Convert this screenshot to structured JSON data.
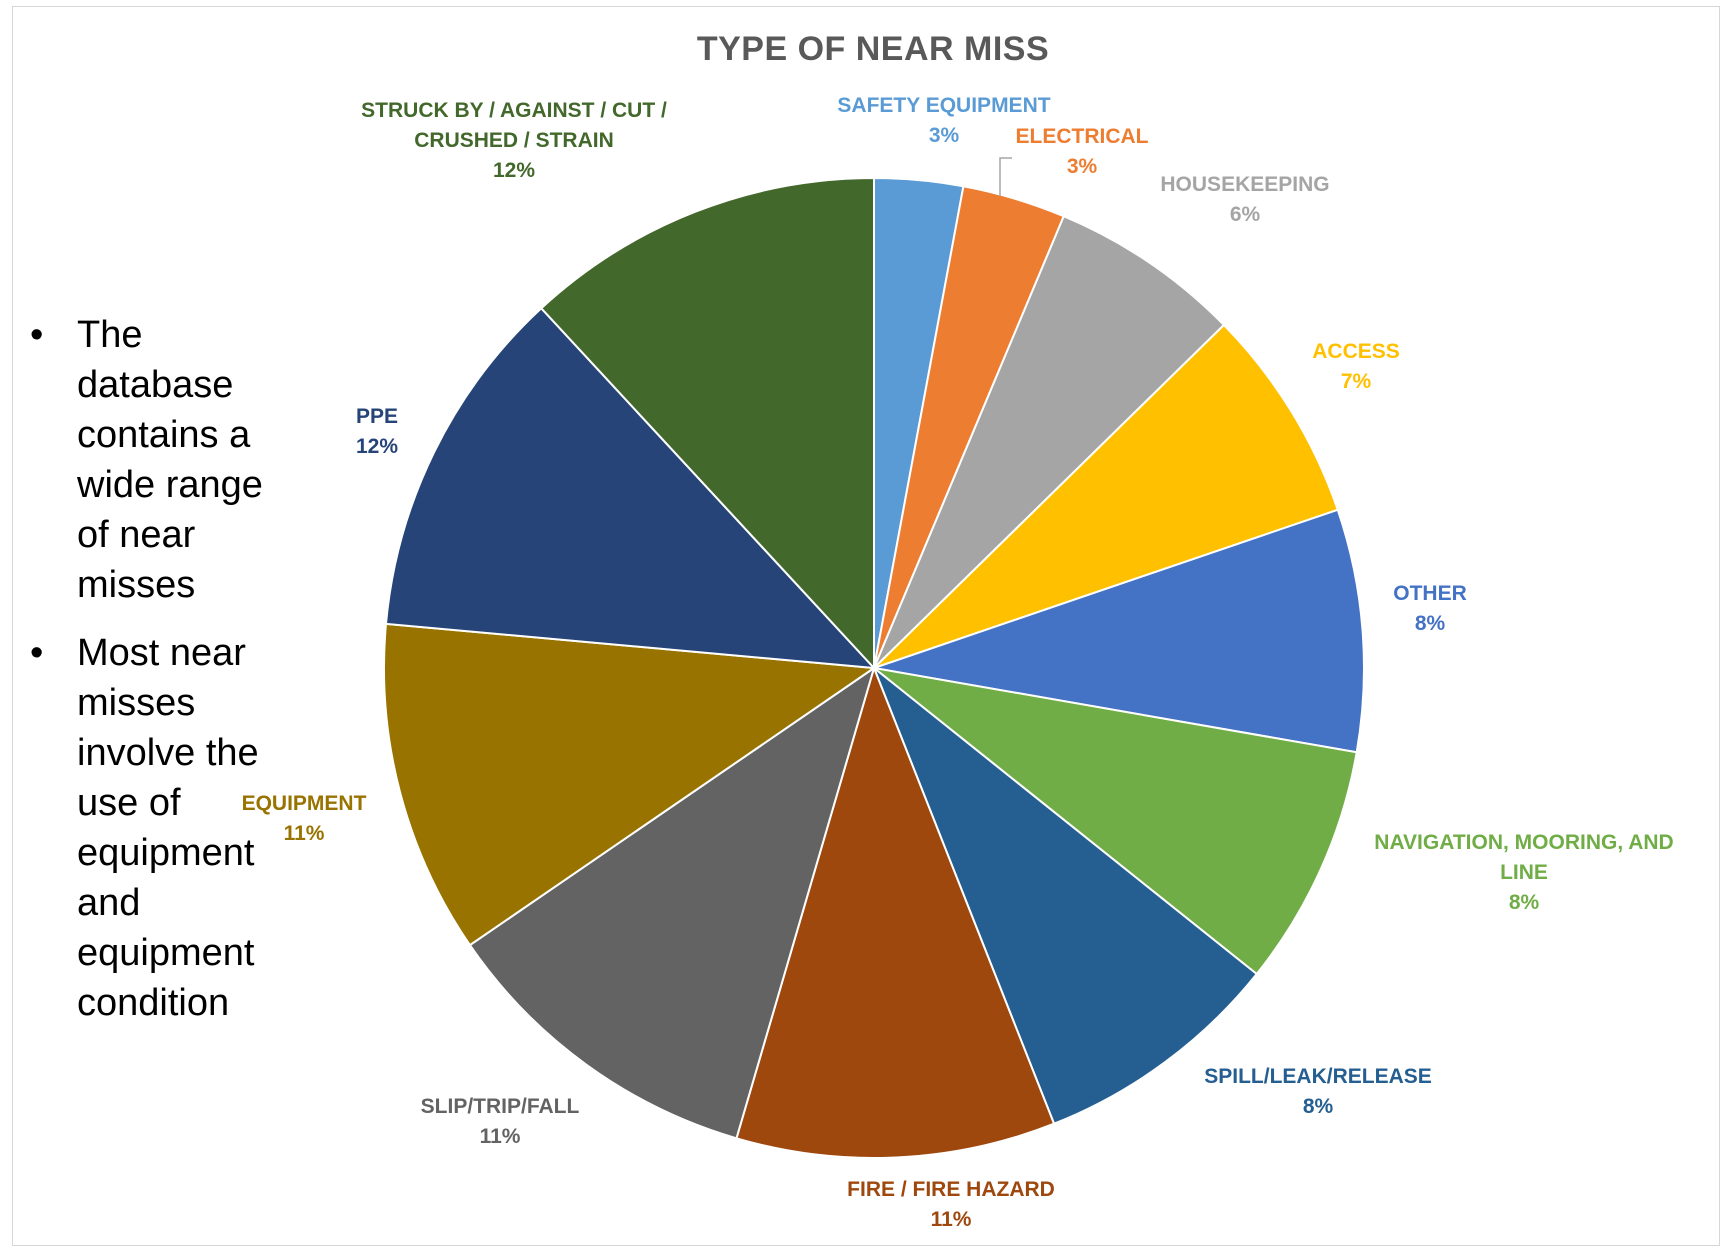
{
  "chart_data": {
    "type": "pie",
    "title": "TYPE OF NEAR MISS",
    "slices": [
      {
        "label": [
          "SAFETY EQUIPMENT"
        ],
        "pct_label": "3%",
        "value": 3,
        "color": "#5b9bd5"
      },
      {
        "label": [
          "ELECTRICAL"
        ],
        "pct_label": "3%",
        "value": 3.5,
        "color": "#ed7d31"
      },
      {
        "label": [
          "HOUSEKEEPING"
        ],
        "pct_label": "6%",
        "value": 6.5,
        "color": "#a5a5a5"
      },
      {
        "label": [
          "ACCESS"
        ],
        "pct_label": "7%",
        "value": 7.3,
        "color": "#ffc000"
      },
      {
        "label": [
          "OTHER"
        ],
        "pct_label": "8%",
        "value": 8.2,
        "color": "#4472c4"
      },
      {
        "label": [
          "NAVIGATION, MOORING, AND",
          "LINE"
        ],
        "pct_label": "8%",
        "value": 8.2,
        "color": "#70ad47"
      },
      {
        "label": [
          "SPILL/LEAK/RELEASE"
        ],
        "pct_label": "8%",
        "value": 8.5,
        "color": "#255e91"
      },
      {
        "label": [
          "FIRE / FIRE HAZARD"
        ],
        "pct_label": "11%",
        "value": 10.8,
        "color": "#9e480e"
      },
      {
        "label": [
          "SLIP/TRIP/FALL"
        ],
        "pct_label": "11%",
        "value": 11.2,
        "color": "#636363"
      },
      {
        "label": [
          "EQUIPMENT"
        ],
        "pct_label": "11%",
        "value": 11.3,
        "color": "#997300"
      },
      {
        "label": [
          "PPE"
        ],
        "pct_label": "12%",
        "value": 12.0,
        "color": "#264478"
      },
      {
        "label": [
          "STRUCK BY / AGAINST / CUT /",
          "CRUSHED / STRAIN"
        ],
        "pct_label": "12%",
        "value": 12.2,
        "color": "#43682b"
      }
    ]
  },
  "bullets": [
    {
      "lines": [
        "The",
        "database",
        "contains a",
        "wide range",
        "of near",
        "misses"
      ]
    },
    {
      "lines": [
        "Most near",
        "misses",
        "involve the",
        "use of",
        "equipment",
        "and",
        "equipment",
        "condition"
      ]
    }
  ],
  "label_colors": {
    "SAFETY EQUIPMENT": "#5b9bd5",
    "ELECTRICAL": "#ed7d31",
    "HOUSEKEEPING": "#a5a5a5",
    "ACCESS": "#ffc000",
    "OTHER": "#4472c4",
    "NAVIGATION": "#70ad47",
    "SPILL": "#255e91",
    "FIRE": "#9e480e",
    "SLIP": "#636363",
    "EQUIPMENT": "#997300",
    "PPE": "#264478",
    "STRUCK": "#43682b"
  }
}
